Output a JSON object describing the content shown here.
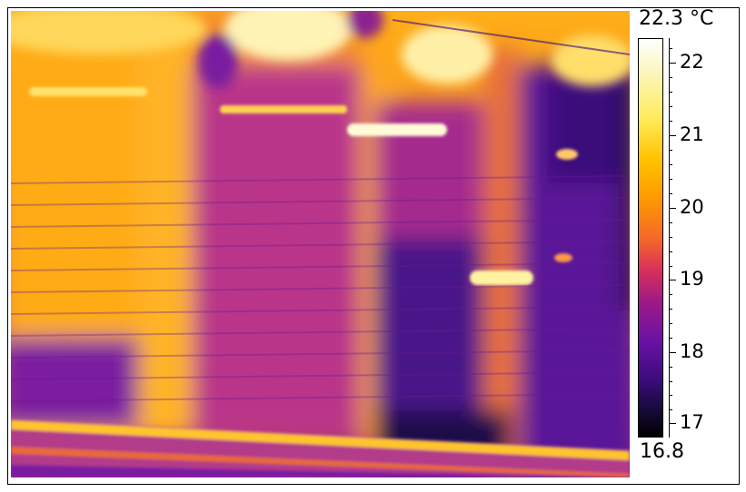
{
  "scale": {
    "max_label": "22.3 °C",
    "min_label": "16.8",
    "ticks": [
      "22",
      "21",
      "20",
      "19",
      "18",
      "17"
    ]
  },
  "palette": [
    "#000000",
    "#3a0b7a",
    "#6a11a6",
    "#9e1a86",
    "#d9305a",
    "#f56a28",
    "#ff9a00",
    "#ffc400",
    "#ffeb5b",
    "#ffffff"
  ]
}
